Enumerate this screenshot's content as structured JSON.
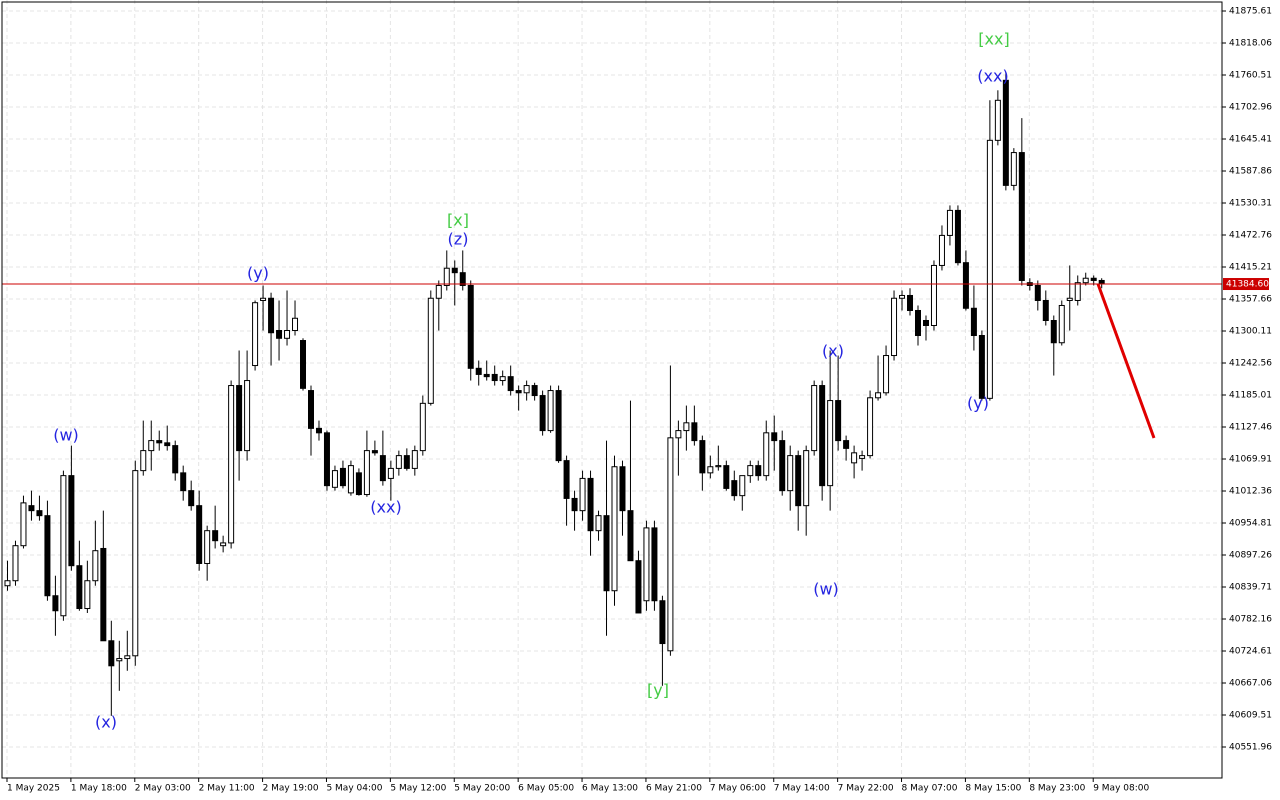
{
  "chart_data": {
    "type": "candlestick",
    "ylim": [
      40496.2,
      41895.4
    ],
    "yticks": [
      41875.61,
      41818.06,
      41760.51,
      41702.96,
      41645.41,
      41587.86,
      41530.31,
      41472.76,
      41415.21,
      41357.66,
      41300.11,
      41242.56,
      41185.01,
      41127.46,
      41069.91,
      41012.36,
      40954.81,
      40897.26,
      40839.71,
      40782.16,
      40724.61,
      40667.06,
      40609.51,
      40551.96
    ],
    "xlim": [
      -0.625,
      152.125
    ],
    "xticks": [
      {
        "value": 0,
        "label": "1 May 2025"
      },
      {
        "value": 8,
        "label": "1 May 18:00"
      },
      {
        "value": 16,
        "label": "2 May 03:00"
      },
      {
        "value": 24,
        "label": "2 May 11:00"
      },
      {
        "value": 32,
        "label": "2 May 19:00"
      },
      {
        "value": 40,
        "label": "5 May 04:00"
      },
      {
        "value": 48,
        "label": "5 May 12:00"
      },
      {
        "value": 56,
        "label": "5 May 20:00"
      },
      {
        "value": 64,
        "label": "6 May 05:00"
      },
      {
        "value": 72,
        "label": "6 May 13:00"
      },
      {
        "value": 80,
        "label": "6 May 21:00"
      },
      {
        "value": 88,
        "label": "7 May 06:00"
      },
      {
        "value": 96,
        "label": "7 May 14:00"
      },
      {
        "value": 104,
        "label": "7 May 22:00"
      },
      {
        "value": 112,
        "label": "8 May 07:00"
      },
      {
        "value": 120,
        "label": "8 May 15:00"
      },
      {
        "value": 128,
        "label": "8 May 23:00"
      },
      {
        "value": 136,
        "label": "9 May 08:00"
      }
    ],
    "grid": true,
    "up_color": "#ffffff",
    "down_color": "#000000",
    "candles": {
      "open": [
        40842,
        40851,
        40914,
        40986,
        40977,
        40968,
        40824,
        40788,
        41040,
        40878,
        40801,
        40851,
        40909,
        40743,
        40707,
        40711,
        40716,
        41049,
        41085,
        41103,
        41099,
        41094,
        41045,
        41013,
        40986,
        40882,
        40941,
        40914,
        40919,
        41202,
        41085,
        41238,
        41355,
        41359,
        41301,
        41287,
        41301,
        41283,
        41193,
        41125,
        41117,
        41019,
        41053,
        41009,
        41045,
        41006,
        41085,
        41076,
        41035,
        41053,
        41076,
        41053,
        41085,
        41170,
        41359,
        41382,
        41413,
        41405,
        41382,
        41233,
        41222,
        41222,
        41211,
        41218,
        41193,
        41189,
        41202,
        41184,
        41121,
        41193,
        41067,
        40999,
        40977,
        41035,
        40941,
        40968,
        40833,
        41056,
        40977,
        40887,
        40815,
        40946,
        40815,
        40725,
        41108,
        41121,
        41135,
        41103,
        41045,
        41056,
        41058,
        41031,
        41004,
        41040,
        41058,
        41040,
        41117,
        41103,
        41013,
        41076,
        40986,
        41085,
        41202,
        41022,
        41175,
        41103,
        41063,
        41071,
        41076,
        41180,
        41189,
        41256,
        41359,
        41364,
        41337,
        41319,
        41310,
        41418,
        41472,
        41517,
        41423,
        41341,
        41292,
        41179,
        41643,
        41751,
        41562,
        41621,
        41387,
        41382,
        41355,
        41319,
        41279,
        41355,
        41355,
        41387,
        41395,
        41391
      ],
      "high": [
        40887,
        40923,
        41004,
        41013,
        41004,
        40995,
        40860,
        41049,
        41094,
        40923,
        40887,
        40959,
        40977,
        40779,
        40743,
        40761,
        41067,
        41139,
        41139,
        41121,
        41130,
        41103,
        41058,
        41031,
        41013,
        40950,
        40986,
        40932,
        41211,
        41265,
        41265,
        41355,
        41382,
        41369,
        41355,
        41373,
        41355,
        41287,
        41202,
        41139,
        41121,
        41058,
        41067,
        41067,
        41053,
        41121,
        41103,
        41121,
        41067,
        41085,
        41089,
        41094,
        41184,
        41373,
        41391,
        41445,
        41427,
        41445,
        41391,
        41247,
        41247,
        41238,
        41229,
        41238,
        41202,
        41211,
        41207,
        41193,
        41202,
        41202,
        41076,
        41013,
        41049,
        41049,
        40977,
        41103,
        41076,
        41067,
        41175,
        40905,
        40959,
        40959,
        40824,
        41238,
        41139,
        41166,
        41166,
        41112,
        41076,
        41094,
        41067,
        41049,
        41031,
        41067,
        41067,
        41139,
        41148,
        41121,
        41094,
        41085,
        41094,
        41211,
        41211,
        41265,
        41256,
        41112,
        41094,
        41085,
        41193,
        41256,
        41274,
        41373,
        41373,
        41377,
        41346,
        41328,
        41427,
        41490,
        41526,
        41526,
        41445,
        41382,
        41301,
        41715,
        41733,
        41765,
        41629,
        41683,
        41395,
        41391,
        41373,
        41328,
        41355,
        41418,
        41400,
        41405,
        41400,
        41395
      ],
      "low": [
        40833,
        40842,
        40909,
        40959,
        40959,
        40815,
        40752,
        40779,
        40869,
        40797,
        40793,
        40842,
        40743,
        40608,
        40653,
        40689,
        40698,
        41040,
        41049,
        41085,
        41085,
        41031,
        40995,
        40977,
        40869,
        40851,
        40909,
        40902,
        40909,
        41031,
        41067,
        41229,
        41301,
        41238,
        41247,
        41274,
        41292,
        41193,
        41076,
        41103,
        41013,
        41013,
        41017,
        41004,
        41004,
        41002,
        41076,
        41022,
        40995,
        41040,
        41049,
        41040,
        41076,
        41166,
        41301,
        41373,
        41346,
        41373,
        41211,
        41202,
        41211,
        41202,
        41202,
        41184,
        41157,
        41175,
        41175,
        41112,
        41117,
        41063,
        40950,
        40941,
        40959,
        40896,
        40923,
        40752,
        40806,
        40932,
        40887,
        40793,
        40797,
        40797,
        40662,
        40716,
        41040,
        41085,
        41094,
        41013,
        41035,
        41049,
        41013,
        40995,
        40977,
        41027,
        41031,
        41031,
        41049,
        41004,
        40977,
        40941,
        40932,
        41076,
        40995,
        40977,
        41085,
        41067,
        41035,
        41049,
        41071,
        41175,
        41184,
        41247,
        41337,
        41328,
        41274,
        41283,
        41301,
        41409,
        41454,
        41418,
        41337,
        41265,
        41175,
        41175,
        41634,
        41553,
        41553,
        41382,
        41373,
        41337,
        41310,
        41220,
        41274,
        41301,
        41346,
        41382,
        41382,
        41377
      ],
      "close": [
        40851,
        40914,
        40991,
        40977,
        40968,
        40824,
        40797,
        41040,
        40878,
        40801,
        40851,
        40905,
        40743,
        40698,
        40711,
        40716,
        41049,
        41085,
        41103,
        41099,
        41094,
        41045,
        41013,
        40986,
        40882,
        40941,
        40923,
        40919,
        41202,
        41085,
        41211,
        41351,
        41359,
        41297,
        41287,
        41301,
        41323,
        41197,
        41125,
        41117,
        41022,
        41049,
        41022,
        41058,
        41006,
        41085,
        41081,
        41031,
        41053,
        41076,
        41053,
        41085,
        41170,
        41359,
        41382,
        41413,
        41405,
        41382,
        41233,
        41222,
        41218,
        41211,
        41218,
        41193,
        41189,
        41202,
        41184,
        41121,
        41193,
        41067,
        40999,
        40977,
        41035,
        40941,
        40968,
        40833,
        41056,
        40977,
        40887,
        40793,
        40946,
        40815,
        40738,
        41108,
        41121,
        41135,
        41103,
        41045,
        41056,
        41058,
        41017,
        41004,
        41040,
        41058,
        41040,
        41117,
        41103,
        41013,
        41076,
        40986,
        41085,
        41202,
        41022,
        41175,
        41103,
        41089,
        41081,
        41076,
        41180,
        41189,
        41256,
        41359,
        41364,
        41337,
        41292,
        41310,
        41418,
        41472,
        41517,
        41423,
        41341,
        41292,
        41179,
        41643,
        41715,
        41562,
        41621,
        41391,
        41382,
        41355,
        41319,
        41279,
        41346,
        41359,
        41387,
        41395,
        41391,
        41385
      ]
    },
    "current_price": {
      "value": 41384.6,
      "label": "41384.60",
      "color": "#cc0000"
    },
    "wave_labels": [
      {
        "text": "(w)",
        "color": "#2424e0"
      },
      {
        "text": "(x)",
        "color": "#2424e0"
      },
      {
        "text": "(y)",
        "color": "#2424e0"
      },
      {
        "text": "(xx)",
        "color": "#2424e0"
      },
      {
        "text": "(z)",
        "color": "#2424e0"
      },
      {
        "text": "[x]",
        "color": "#44cc44"
      },
      {
        "text": "[y]",
        "color": "#44cc44"
      },
      {
        "text": "(w)",
        "color": "#2424e0"
      },
      {
        "text": "(x)",
        "color": "#2424e0"
      },
      {
        "text": "(y)",
        "color": "#2424e0"
      },
      {
        "text": "(xx)",
        "color": "#2424e0"
      },
      {
        "text": "[xx]",
        "color": "#44cc44"
      }
    ]
  }
}
